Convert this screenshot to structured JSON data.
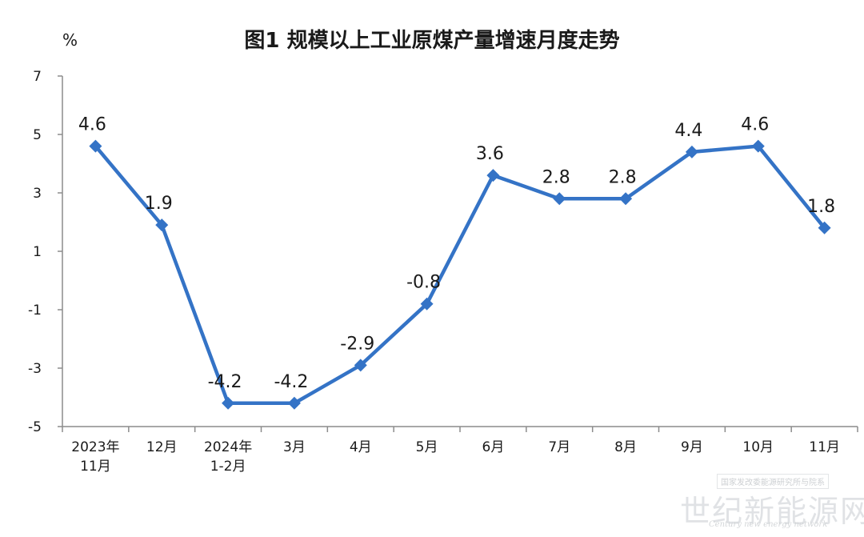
{
  "chart_data": {
    "type": "line",
    "title": "图1  规模以上工业原煤产量增速月度走势",
    "ylabel": "%",
    "xlabel": "",
    "ylim": [
      -5,
      7
    ],
    "yticks": [
      -5,
      -3,
      -1,
      1,
      3,
      5,
      7
    ],
    "categories": [
      "2023年\n11月",
      "12月",
      "2024年\n1-2月",
      "3月",
      "4月",
      "5月",
      "6月",
      "7月",
      "8月",
      "9月",
      "10月",
      "11月"
    ],
    "series": [
      {
        "values": [
          4.6,
          1.9,
          -4.2,
          -4.2,
          -2.9,
          -0.8,
          3.6,
          2.8,
          2.8,
          4.4,
          4.6,
          1.8
        ]
      }
    ],
    "data_labels": [
      "4.6",
      "1.9",
      "-4.2",
      "-4.2",
      "-2.9",
      "-0.8",
      "3.6",
      "2.8",
      "2.8",
      "4.4",
      "4.6",
      "1.8"
    ],
    "grid": false,
    "colors": {
      "line": "#3473c6",
      "axis": "#8c8c8c",
      "text": "#1a1a1a"
    }
  },
  "watermark": {
    "top": "国家发改委能源研究所与院系",
    "main": "世纪新能源网",
    "sub": "Century new energy network"
  }
}
